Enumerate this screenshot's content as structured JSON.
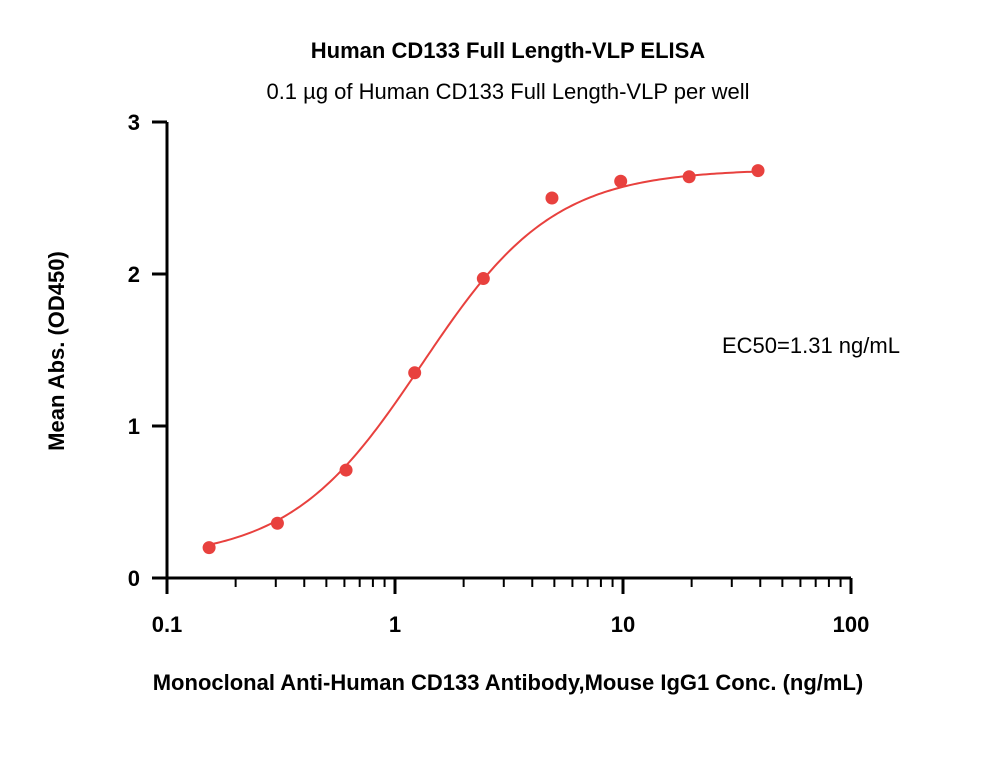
{
  "chart_data": {
    "type": "scatter",
    "title": "Human CD133 Full Length-VLP ELISA",
    "subtitle": "0.1 µg of Human CD133 Full Length-VLP per well",
    "xlabel": "Monoclonal Anti-Human CD133 Antibody,Mouse IgG1 Conc. (ng/mL)",
    "ylabel": "Mean Abs. (OD450)",
    "x_scale": "log",
    "xlim": [
      0.1,
      100
    ],
    "ylim": [
      0,
      3
    ],
    "x_ticks": [
      0.1,
      1,
      10,
      100
    ],
    "x_tick_labels": [
      "0.1",
      "1",
      "10",
      "100"
    ],
    "y_ticks": [
      0,
      1,
      2,
      3
    ],
    "y_tick_labels": [
      "0",
      "1",
      "2",
      "3"
    ],
    "grid": false,
    "legend": "none",
    "annotation": "EC50=1.31 ng/mL",
    "color": "#e8413e",
    "series": [
      {
        "points": [
          {
            "x": 0.153,
            "y": 0.2
          },
          {
            "x": 0.305,
            "y": 0.36
          },
          {
            "x": 0.61,
            "y": 0.71
          },
          {
            "x": 1.22,
            "y": 1.35
          },
          {
            "x": 2.44,
            "y": 1.97
          },
          {
            "x": 4.88,
            "y": 2.5
          },
          {
            "x": 9.77,
            "y": 2.61
          },
          {
            "x": 19.5,
            "y": 2.64
          },
          {
            "x": 39.1,
            "y": 2.68
          }
        ],
        "fit": {
          "model": "4PL",
          "bottom": 0.12,
          "top": 2.69,
          "ec50": 1.31,
          "hill": 1.5
        }
      }
    ]
  }
}
